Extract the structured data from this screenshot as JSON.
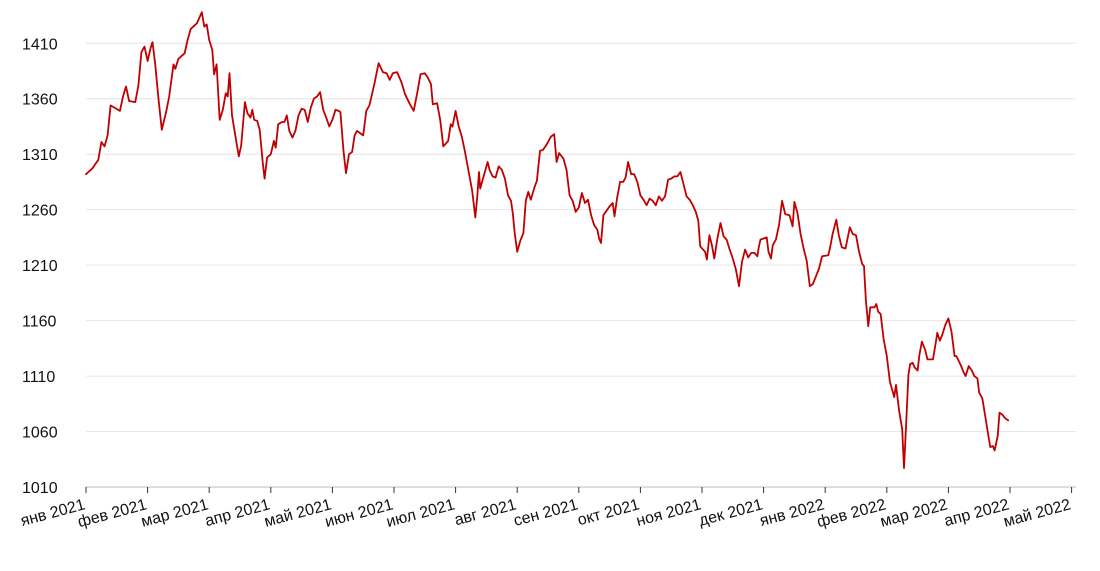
{
  "chart_data": {
    "type": "line",
    "title": "",
    "xlabel": "",
    "ylabel": "",
    "ylim": [
      1010,
      1440
    ],
    "y_ticks": [
      1010,
      1060,
      1110,
      1160,
      1210,
      1260,
      1310,
      1360,
      1410
    ],
    "x_ticks": [
      "янв 2021",
      "фев 2021",
      "мар 2021",
      "апр 2021",
      "май 2021",
      "июн 2021",
      "июл 2021",
      "авг 2021",
      "сен 2021",
      "окт 2021",
      "ноя 2021",
      "дек 2021",
      "янв 2022",
      "фев 2022",
      "мар 2022",
      "апр 2022",
      "май 2022"
    ],
    "grid": true,
    "color": "#c00000",
    "series": [
      {
        "points": [
          [
            0,
            1292
          ],
          [
            0.1,
            1297
          ],
          [
            0.2,
            1305
          ],
          [
            0.25,
            1321
          ],
          [
            0.3,
            1317
          ],
          [
            0.35,
            1327
          ],
          [
            0.4,
            1354
          ],
          [
            0.55,
            1349
          ],
          [
            0.6,
            1362
          ],
          [
            0.65,
            1371
          ],
          [
            0.7,
            1358
          ],
          [
            0.8,
            1357
          ],
          [
            0.85,
            1372
          ],
          [
            0.9,
            1402
          ],
          [
            0.95,
            1407
          ],
          [
            1.0,
            1394
          ],
          [
            1.05,
            1406
          ],
          [
            1.08,
            1411
          ],
          [
            1.12,
            1393
          ],
          [
            1.18,
            1358
          ],
          [
            1.23,
            1332
          ],
          [
            1.3,
            1348
          ],
          [
            1.35,
            1362
          ],
          [
            1.42,
            1391
          ],
          [
            1.45,
            1387
          ],
          [
            1.5,
            1396
          ],
          [
            1.6,
            1401
          ],
          [
            1.65,
            1413
          ],
          [
            1.7,
            1423
          ],
          [
            1.8,
            1428
          ],
          [
            1.88,
            1438
          ],
          [
            1.92,
            1425
          ],
          [
            1.96,
            1427
          ],
          [
            2.0,
            1413
          ],
          [
            2.05,
            1404
          ],
          [
            2.08,
            1382
          ],
          [
            2.12,
            1391
          ],
          [
            2.17,
            1341
          ],
          [
            2.22,
            1350
          ],
          [
            2.27,
            1365
          ],
          [
            2.3,
            1362
          ],
          [
            2.33,
            1383
          ],
          [
            2.37,
            1345
          ],
          [
            2.42,
            1328
          ],
          [
            2.48,
            1308
          ],
          [
            2.52,
            1318
          ],
          [
            2.58,
            1357
          ],
          [
            2.62,
            1347
          ],
          [
            2.67,
            1343
          ],
          [
            2.7,
            1350
          ],
          [
            2.73,
            1341
          ],
          [
            2.78,
            1340
          ],
          [
            2.82,
            1332
          ],
          [
            2.87,
            1302
          ],
          [
            2.9,
            1288
          ],
          [
            2.94,
            1307
          ],
          [
            3.0,
            1310
          ],
          [
            3.05,
            1322
          ],
          [
            3.08,
            1316
          ],
          [
            3.12,
            1337
          ],
          [
            3.18,
            1339
          ],
          [
            3.22,
            1339
          ],
          [
            3.26,
            1345
          ],
          [
            3.3,
            1331
          ],
          [
            3.35,
            1325
          ],
          [
            3.4,
            1331
          ],
          [
            3.45,
            1345
          ],
          [
            3.5,
            1351
          ],
          [
            3.55,
            1350
          ],
          [
            3.6,
            1339
          ],
          [
            3.65,
            1352
          ],
          [
            3.7,
            1360
          ],
          [
            3.75,
            1362
          ],
          [
            3.8,
            1366
          ],
          [
            3.85,
            1350
          ],
          [
            3.9,
            1343
          ],
          [
            3.95,
            1335
          ],
          [
            4.0,
            1341
          ],
          [
            4.05,
            1350
          ],
          [
            4.1,
            1349
          ],
          [
            4.13,
            1348
          ],
          [
            4.18,
            1313
          ],
          [
            4.22,
            1293
          ],
          [
            4.27,
            1310
          ],
          [
            4.32,
            1312
          ],
          [
            4.36,
            1327
          ],
          [
            4.4,
            1331
          ],
          [
            4.45,
            1329
          ],
          [
            4.5,
            1327
          ],
          [
            4.55,
            1349
          ],
          [
            4.6,
            1354
          ],
          [
            4.68,
            1373
          ],
          [
            4.75,
            1392
          ],
          [
            4.82,
            1384
          ],
          [
            4.88,
            1383
          ],
          [
            4.93,
            1377
          ],
          [
            4.98,
            1383
          ],
          [
            5.05,
            1384
          ],
          [
            5.12,
            1375
          ],
          [
            5.18,
            1364
          ],
          [
            5.25,
            1356
          ],
          [
            5.32,
            1349
          ],
          [
            5.38,
            1366
          ],
          [
            5.43,
            1382
          ],
          [
            5.5,
            1383
          ],
          [
            5.55,
            1379
          ],
          [
            5.6,
            1373
          ],
          [
            5.63,
            1355
          ],
          [
            5.7,
            1356
          ],
          [
            5.75,
            1341
          ],
          [
            5.8,
            1317
          ],
          [
            5.88,
            1322
          ],
          [
            5.92,
            1337
          ],
          [
            5.95,
            1335
          ],
          [
            6.0,
            1349
          ],
          [
            6.05,
            1335
          ],
          [
            6.1,
            1326
          ],
          [
            6.15,
            1313
          ],
          [
            6.2,
            1298
          ],
          [
            6.27,
            1277
          ],
          [
            6.32,
            1253
          ],
          [
            6.35,
            1271
          ],
          [
            6.38,
            1294
          ],
          [
            6.4,
            1279
          ],
          [
            6.46,
            1291
          ],
          [
            6.52,
            1303
          ],
          [
            6.55,
            1296
          ],
          [
            6.6,
            1290
          ],
          [
            6.65,
            1289
          ],
          [
            6.7,
            1299
          ],
          [
            6.75,
            1296
          ],
          [
            6.8,
            1288
          ],
          [
            6.85,
            1273
          ],
          [
            6.9,
            1268
          ],
          [
            6.93,
            1256
          ],
          [
            6.96,
            1239
          ],
          [
            7.0,
            1222
          ],
          [
            7.05,
            1232
          ],
          [
            7.1,
            1239
          ],
          [
            7.14,
            1268
          ],
          [
            7.18,
            1276
          ],
          [
            7.22,
            1269
          ],
          [
            7.28,
            1280
          ],
          [
            7.32,
            1286
          ],
          [
            7.37,
            1313
          ],
          [
            7.42,
            1314
          ],
          [
            7.48,
            1319
          ],
          [
            7.52,
            1323
          ],
          [
            7.55,
            1326
          ],
          [
            7.6,
            1328
          ],
          [
            7.64,
            1303
          ],
          [
            7.68,
            1311
          ],
          [
            7.75,
            1306
          ],
          [
            7.8,
            1296
          ],
          [
            7.85,
            1273
          ],
          [
            7.9,
            1268
          ],
          [
            7.95,
            1258
          ],
          [
            8.0,
            1262
          ],
          [
            8.05,
            1275
          ],
          [
            8.1,
            1266
          ],
          [
            8.15,
            1269
          ],
          [
            8.2,
            1255
          ],
          [
            8.25,
            1246
          ],
          [
            8.3,
            1242
          ],
          [
            8.33,
            1234
          ],
          [
            8.36,
            1230
          ],
          [
            8.4,
            1255
          ],
          [
            8.5,
            1263
          ],
          [
            8.55,
            1266
          ],
          [
            8.58,
            1254
          ],
          [
            8.62,
            1270
          ],
          [
            8.67,
            1285
          ],
          [
            8.72,
            1285
          ],
          [
            8.76,
            1289
          ],
          [
            8.8,
            1303
          ],
          [
            8.85,
            1292
          ],
          [
            8.9,
            1292
          ],
          [
            8.95,
            1285
          ],
          [
            9.0,
            1273
          ],
          [
            9.05,
            1269
          ],
          [
            9.1,
            1264
          ],
          [
            9.15,
            1270
          ],
          [
            9.2,
            1268
          ],
          [
            9.25,
            1264
          ],
          [
            9.3,
            1272
          ],
          [
            9.35,
            1268
          ],
          [
            9.4,
            1272
          ],
          [
            9.45,
            1287
          ],
          [
            9.5,
            1288
          ],
          [
            9.55,
            1290
          ],
          [
            9.6,
            1290
          ],
          [
            9.65,
            1294
          ],
          [
            9.7,
            1283
          ],
          [
            9.75,
            1272
          ],
          [
            9.8,
            1269
          ],
          [
            9.85,
            1264
          ],
          [
            9.9,
            1258
          ],
          [
            9.94,
            1250
          ],
          [
            9.97,
            1227
          ],
          [
            10.05,
            1222
          ],
          [
            10.08,
            1215
          ],
          [
            10.12,
            1237
          ],
          [
            10.16,
            1228
          ],
          [
            10.2,
            1216
          ],
          [
            10.25,
            1234
          ],
          [
            10.3,
            1248
          ],
          [
            10.35,
            1236
          ],
          [
            10.4,
            1233
          ],
          [
            10.45,
            1224
          ],
          [
            10.5,
            1216
          ],
          [
            10.55,
            1206
          ],
          [
            10.6,
            1191
          ],
          [
            10.65,
            1213
          ],
          [
            10.7,
            1224
          ],
          [
            10.75,
            1217
          ],
          [
            10.8,
            1221
          ],
          [
            10.85,
            1221
          ],
          [
            10.9,
            1218
          ],
          [
            10.92,
            1226
          ],
          [
            10.95,
            1233
          ],
          [
            11.05,
            1235
          ],
          [
            11.08,
            1222
          ],
          [
            11.12,
            1216
          ],
          [
            11.15,
            1228
          ],
          [
            11.2,
            1233
          ],
          [
            11.25,
            1246
          ],
          [
            11.3,
            1268
          ],
          [
            11.35,
            1256
          ],
          [
            11.42,
            1255
          ],
          [
            11.47,
            1245
          ],
          [
            11.5,
            1267
          ],
          [
            11.55,
            1257
          ],
          [
            11.6,
            1238
          ],
          [
            11.65,
            1225
          ],
          [
            11.7,
            1214
          ],
          [
            11.75,
            1191
          ],
          [
            11.8,
            1193
          ],
          [
            11.85,
            1200
          ],
          [
            11.9,
            1207
          ],
          [
            11.95,
            1218
          ],
          [
            12.05,
            1219
          ],
          [
            12.08,
            1226
          ],
          [
            12.12,
            1238
          ],
          [
            12.18,
            1251
          ],
          [
            12.22,
            1237
          ],
          [
            12.27,
            1226
          ],
          [
            12.33,
            1225
          ],
          [
            12.4,
            1244
          ],
          [
            12.45,
            1238
          ],
          [
            12.5,
            1237
          ],
          [
            12.55,
            1222
          ],
          [
            12.6,
            1211
          ],
          [
            12.63,
            1209
          ],
          [
            12.66,
            1178
          ],
          [
            12.7,
            1155
          ],
          [
            12.73,
            1172
          ],
          [
            12.76,
            1172
          ],
          [
            12.8,
            1172
          ],
          [
            12.83,
            1175
          ],
          [
            12.86,
            1168
          ],
          [
            12.9,
            1166
          ],
          [
            12.95,
            1143
          ],
          [
            13.0,
            1128
          ],
          [
            13.05,
            1105
          ],
          [
            13.1,
            1095
          ],
          [
            13.12,
            1091
          ],
          [
            13.15,
            1102
          ],
          [
            13.2,
            1079
          ],
          [
            13.25,
            1062
          ],
          [
            13.28,
            1027
          ],
          [
            13.31,
            1062
          ],
          [
            13.35,
            1111
          ],
          [
            13.38,
            1121
          ],
          [
            13.42,
            1122
          ],
          [
            13.45,
            1118
          ],
          [
            13.5,
            1115
          ],
          [
            13.53,
            1129
          ],
          [
            13.57,
            1141
          ],
          [
            13.62,
            1134
          ],
          [
            13.66,
            1125
          ],
          [
            13.75,
            1125
          ],
          [
            13.8,
            1142
          ],
          [
            13.82,
            1149
          ],
          [
            13.86,
            1142
          ],
          [
            13.9,
            1147
          ],
          [
            13.95,
            1156
          ],
          [
            14.0,
            1162
          ],
          [
            14.05,
            1150
          ],
          [
            14.1,
            1128
          ],
          [
            14.13,
            1128
          ],
          [
            14.2,
            1120
          ],
          [
            14.25,
            1113
          ],
          [
            14.28,
            1110
          ],
          [
            14.33,
            1119
          ],
          [
            14.38,
            1115
          ],
          [
            14.42,
            1110
          ],
          [
            14.47,
            1108
          ],
          [
            14.5,
            1095
          ],
          [
            14.55,
            1090
          ],
          [
            14.6,
            1073
          ],
          [
            14.65,
            1056
          ],
          [
            14.68,
            1046
          ],
          [
            14.72,
            1047
          ],
          [
            14.75,
            1043
          ],
          [
            14.8,
            1056
          ],
          [
            14.83,
            1077
          ],
          [
            14.88,
            1075
          ],
          [
            14.92,
            1072
          ],
          [
            14.97,
            1070
          ]
        ]
      }
    ]
  }
}
